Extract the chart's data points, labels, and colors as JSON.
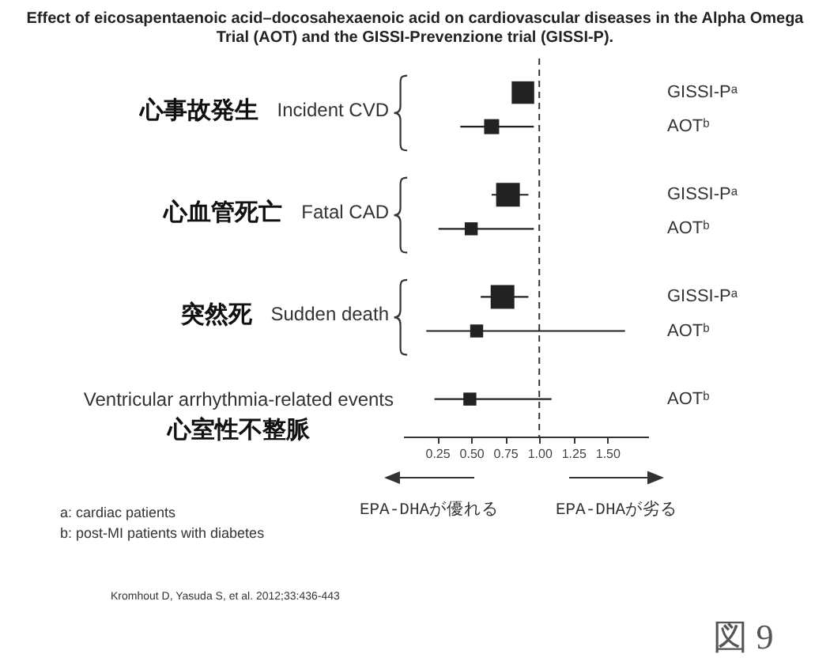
{
  "chart_data": {
    "type": "bubble",
    "orientation": "horizontal",
    "title": "Effect of eicosapentaenoic acid–docosahexaenoic acid on cardiovascular diseases in the Alpha Omega Trial (AOT) and the GISSI-Prevenzione trial (GISSI-P).",
    "categories": [
      "Incident CVD",
      "Fatal CAD",
      "Sudden death",
      "Ventricular arrhythmia-related events"
    ],
    "series": [
      {
        "name": "GISSI-Pᵃ",
        "color": "#222222",
        "values": [
          0.88,
          0.77,
          0.73,
          null
        ],
        "errors": [
          null,
          [
            0.65,
            0.92
          ],
          [
            0.57,
            0.92
          ],
          null
        ],
        "sizes": [
          0.9,
          1,
          1,
          null
        ]
      },
      {
        "name": "AOTᵇ",
        "color": "#222222",
        "values": [
          0.65,
          0.5,
          0.54,
          0.49
        ],
        "errors": [
          [
            0.42,
            0.96
          ],
          [
            0.26,
            0.96
          ],
          [
            0.17,
            1.63
          ],
          [
            0.23,
            1.09
          ]
        ],
        "sizes": [
          0.4,
          0.3,
          0.3,
          0.3
        ]
      }
    ],
    "xlim": [
      0,
      1.8
    ],
    "xticks": [
      0.25,
      {
        "value": 0.5,
        "label": "0.50"
      },
      0.75,
      {
        "value": 1,
        "label": "1.00"
      },
      1.25,
      {
        "value": 1.5,
        "label": "1.50"
      }
    ],
    "marker": "square",
    "ref_lines": [
      {
        "axis": "x",
        "value": 1,
        "color": "#333333",
        "line_style": "dashed"
      }
    ],
    "annotations": [
      "心事故発生",
      "心血管死亡",
      "突然死",
      "心室性不整脈",
      "EPA-DHAが優れる",
      "EPA-DHAが劣る",
      "a: cardiac patients",
      "b: post-MI patients with diabetes",
      "Kromhout D, Yasuda S, et al. 2012;33:436-443",
      "図 9"
    ]
  }
}
